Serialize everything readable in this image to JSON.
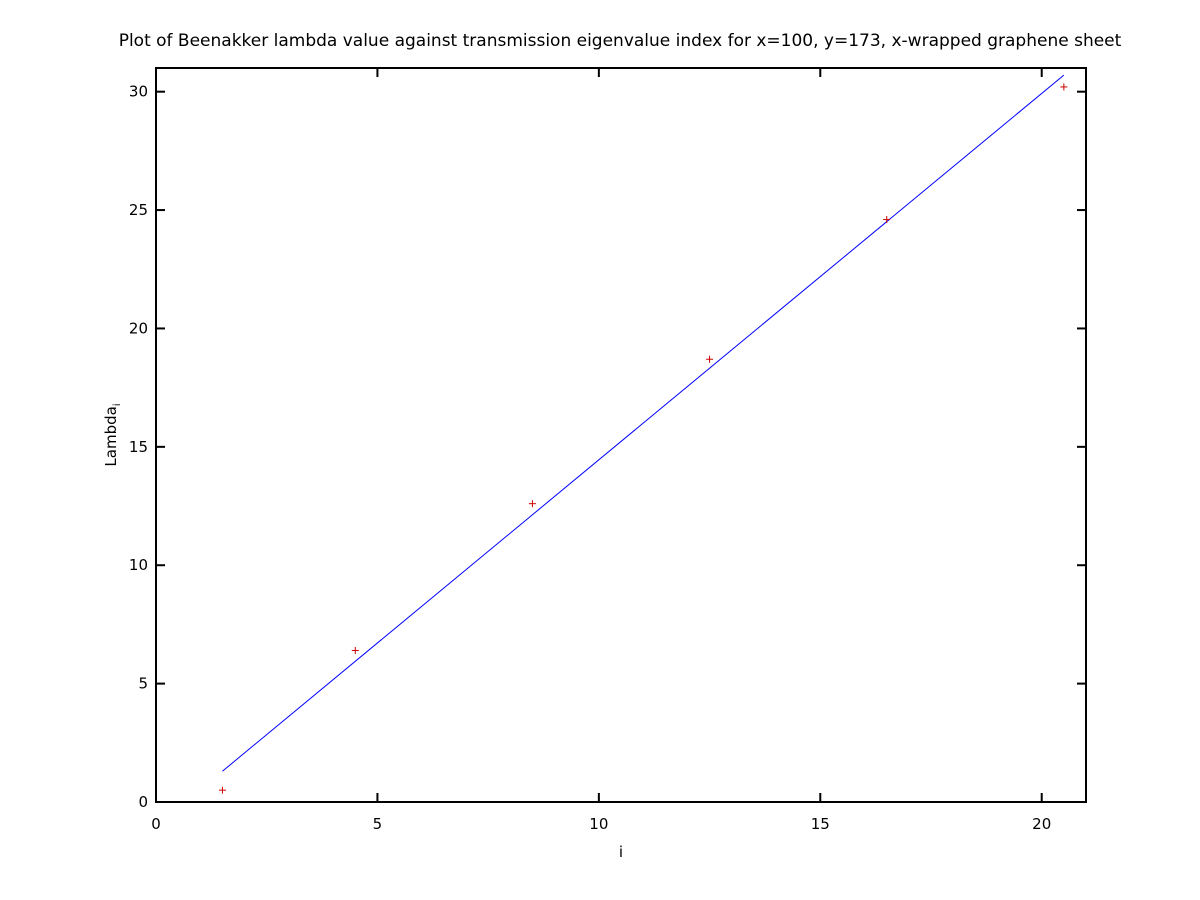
{
  "chart_data": {
    "type": "scatter",
    "title": "Plot of Beenakker lambda value against transmission eigenvalue index for x=100, y=173, x-wrapped graphene sheet",
    "xlabel": "i",
    "ylabel": "Lambda",
    "ylabel_subscript": "i",
    "xlim": [
      0,
      21
    ],
    "ylim": [
      0,
      31
    ],
    "x_ticks": [
      0,
      5,
      10,
      15,
      20
    ],
    "y_ticks": [
      0,
      5,
      10,
      15,
      20,
      25,
      30
    ],
    "x_tick_labels": [
      "0",
      "5",
      "10",
      "15",
      "20"
    ],
    "y_tick_labels": [
      "0",
      "5",
      "10",
      "15",
      "20",
      "25",
      "30"
    ],
    "grid": false,
    "series": [
      {
        "type": "scatter",
        "marker": "+",
        "color": "#cc0000",
        "points": [
          {
            "x": 1.5,
            "y": 0.5
          },
          {
            "x": 4.5,
            "y": 6.4
          },
          {
            "x": 8.5,
            "y": 12.6
          },
          {
            "x": 12.5,
            "y": 18.7
          },
          {
            "x": 16.5,
            "y": 24.6
          },
          {
            "x": 20.5,
            "y": 30.2
          }
        ]
      },
      {
        "type": "line",
        "color": "#0000ff",
        "points": [
          {
            "x": 1.5,
            "y": 1.3
          },
          {
            "x": 20.5,
            "y": 30.7
          }
        ]
      }
    ]
  }
}
